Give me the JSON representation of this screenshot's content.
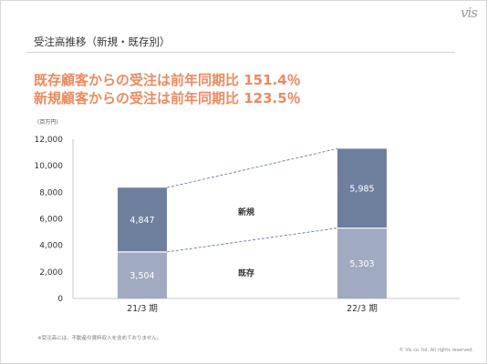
{
  "slide": {
    "title": "受注高推移（新規・既存別）",
    "headline_1": "既存顧客からの受注は前年同期比 151.4％",
    "headline_2": "新規顧客からの受注は前年同期比 123.5％",
    "footnote": "※受注高には、不動産の賃料収入を含めておりません。",
    "copyright": "© Vis co. ltd. All rights reserved.",
    "logo_text": "vis"
  },
  "colors": {
    "new": "#6e7f9e",
    "existing": "#a0abc1",
    "headline": "#ec8a5e",
    "axis": "#c8c8c8",
    "connector": "#4f6b8e"
  },
  "chart_data": {
    "type": "bar",
    "stacked": true,
    "unit_label": "(百万円)",
    "categories": [
      "21/3 期",
      "22/3 期"
    ],
    "series": [
      {
        "name": "既存",
        "values": [
          3504,
          5303
        ]
      },
      {
        "name": "新規",
        "values": [
          4847,
          5985
        ]
      }
    ],
    "ylim": [
      0,
      12000
    ],
    "yticks": [
      0,
      2000,
      4000,
      6000,
      8000,
      10000,
      12000
    ],
    "ytick_labels": [
      "0",
      "2,000",
      "4,000",
      "6,000",
      "8,000",
      "10,000",
      "12,000"
    ],
    "data_labels": [
      [
        "3,504",
        "5,303"
      ],
      [
        "4,847",
        "5,985"
      ]
    ],
    "grid": false,
    "dashed_connectors": true
  }
}
